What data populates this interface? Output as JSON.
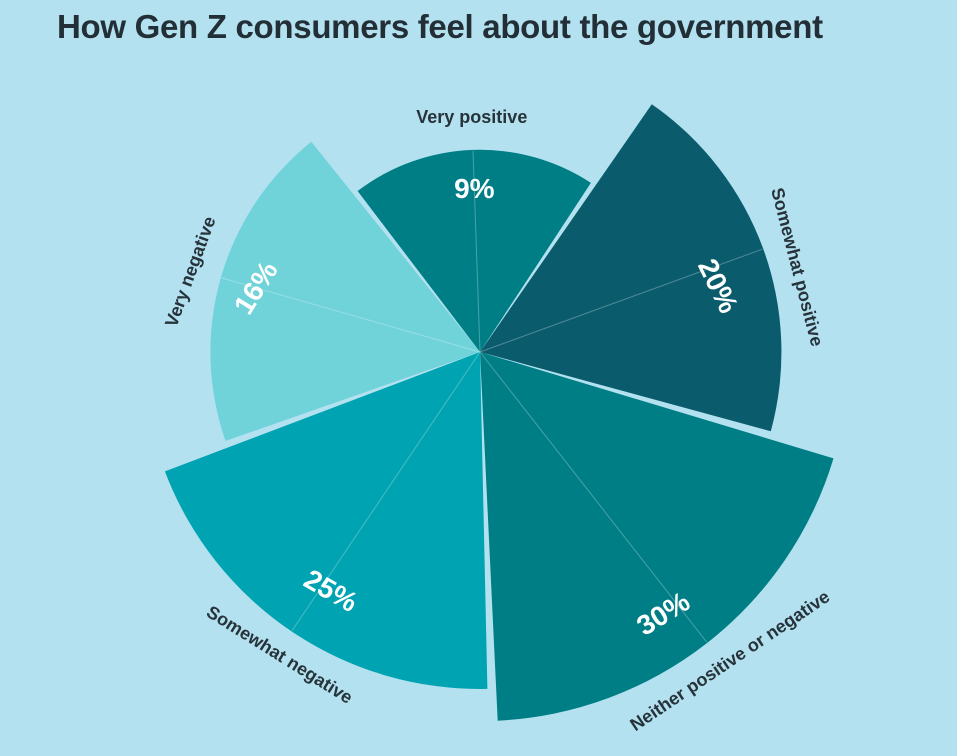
{
  "chart_data": {
    "type": "pie",
    "variant": "polar-area-rose-equal-angle",
    "title": "How Gen Z consumers feel about the government",
    "unit": "%",
    "categories": [
      "Very positive",
      "Somewhat positive",
      "Neither positive or negative",
      "Somewhat negative",
      "Very negative"
    ],
    "values": [
      9,
      20,
      30,
      25,
      16
    ],
    "value_labels": [
      "9%",
      "20%",
      "30%",
      "25%",
      "16%"
    ],
    "slice_colors": [
      "#007e86",
      "#0a5c6d",
      "#007e86",
      "#00a3b2",
      "#70d3da"
    ],
    "background_color": "#b3e1ef",
    "title_color": "#232f37",
    "category_label_color": "#27333b",
    "value_label_color": "#ffffff",
    "legend": "none",
    "label_layout": "category labels rotated radially outside slices, percentage labels inside slices"
  }
}
